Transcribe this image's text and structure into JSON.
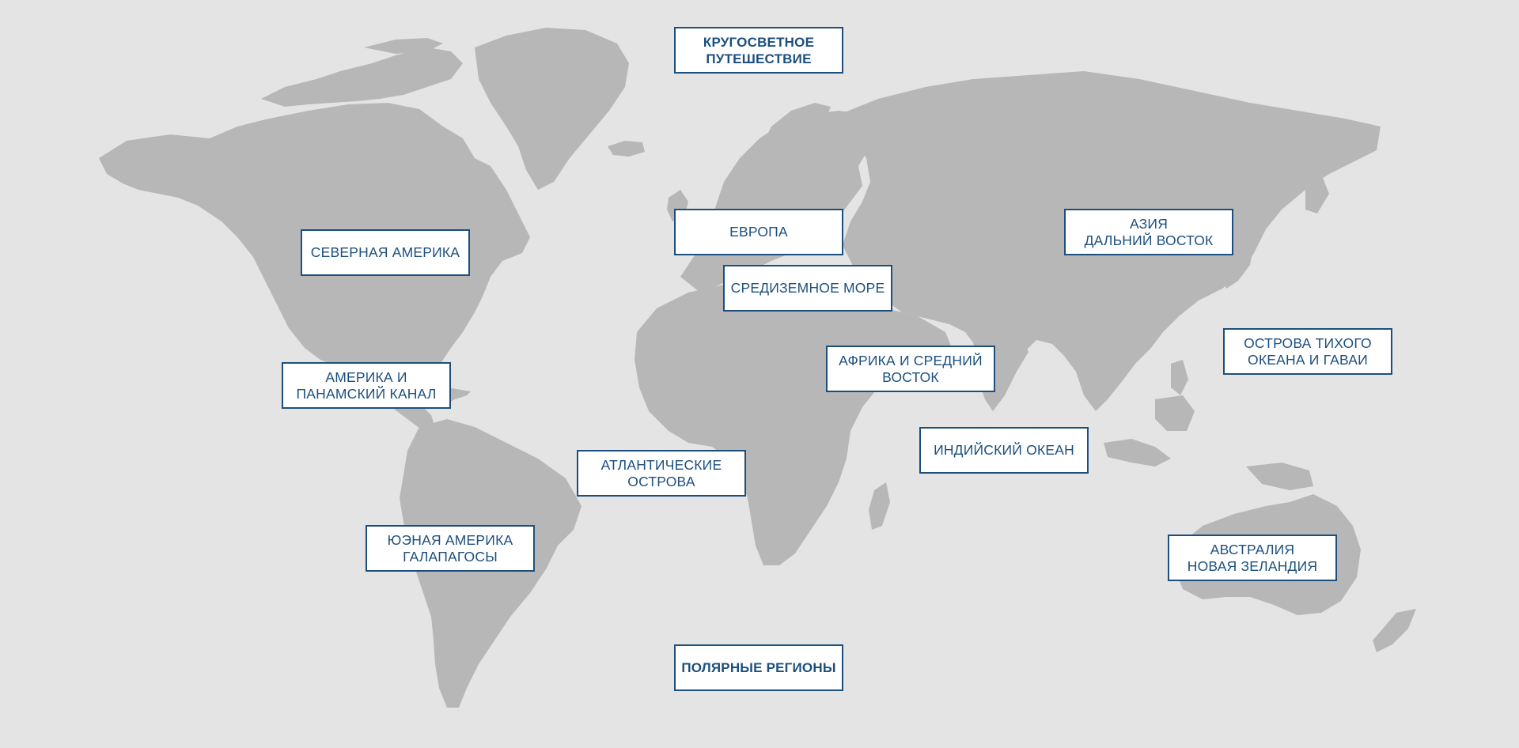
{
  "map": {
    "background_color": "#e4e4e4",
    "land_color": "#b7b7b7",
    "accent_color": "#1c4f7e"
  },
  "regions": {
    "world_cruise": "КРУГОСВЕТНОЕ\nПУТЕШЕСТВИЕ",
    "europe": "ЕВРОПА",
    "north_america": "СЕВЕРНАЯ АМЕРИКА",
    "mediterranean": "СРЕДИЗЕМНОЕ МОРЕ",
    "asia_far_east": "АЗИЯ\nДАЛЬНИЙ ВОСТОК",
    "pacific_hawaii": "ОСТРОВА ТИХОГО\nОКЕАНА И ГАВАИ",
    "africa_middle_east": "АФРИКА И СРЕДНИЙ\nВОСТОК",
    "panama_canal": "АМЕРИКА И\nПАНАМСКИЙ КАНАЛ",
    "indian_ocean": "ИНДИЙСКИЙ ОКЕАН",
    "atlantic_islands": "АТЛАНТИЧЕСКИЕ\nОСТРОВА",
    "south_america": "ЮЭНАЯ АМЕРИКА\nГАЛАПАГОСЫ",
    "australia_nz": "АВСТРАЛИЯ\nНОВАЯ ЗЕЛАНДИЯ",
    "polar": "ПОЛЯРНЫЕ РЕГИОНЫ"
  }
}
